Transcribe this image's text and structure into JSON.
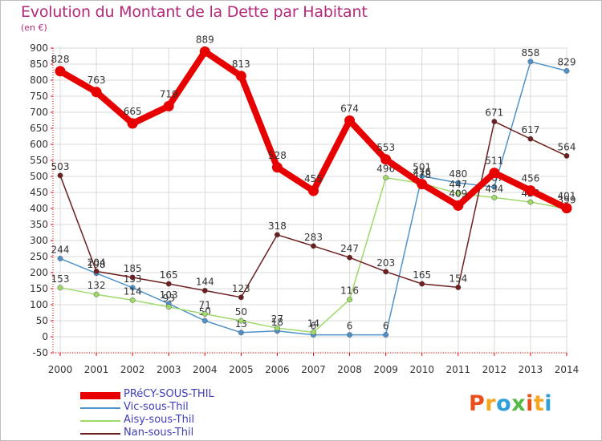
{
  "header": {
    "title": "Evolution du Montant de la Dette par Habitant",
    "unit": "(en €)"
  },
  "brand": {
    "logo_text": "Proxiti",
    "logo_colors": [
      "#e94e1b",
      "#f5a623",
      "#2e9fd8",
      "#56b947",
      "#e94e1b",
      "#f5a623",
      "#2e9fd8"
    ]
  },
  "chart_data": {
    "type": "line",
    "title": "Evolution du Montant de la Dette par Habitant",
    "ylabel": "(en €)",
    "xlabel": "",
    "ylim": [
      -50,
      900
    ],
    "yticks": [
      -50,
      0,
      50,
      100,
      150,
      200,
      250,
      300,
      350,
      400,
      450,
      500,
      550,
      600,
      650,
      700,
      750,
      800,
      850,
      900
    ],
    "grid": true,
    "legend_position": "bottom-left",
    "x": [
      "2000",
      "2001",
      "2002",
      "2003",
      "2004",
      "2005",
      "2006",
      "2007",
      "2008",
      "2009",
      "2010",
      "2011",
      "2012",
      "2013",
      "2014"
    ],
    "series": [
      {
        "name": "PRéCY-SOUS-THIL",
        "color": "#e60000",
        "values": [
          828,
          763,
          665,
          719,
          889,
          813,
          528,
          455,
          674,
          553,
          476,
          409,
          511,
          456,
          401
        ]
      },
      {
        "name": "Vic-sous-Thil",
        "color": "#4f92c9",
        "values": [
          244,
          198,
          153,
          103,
          50,
          13,
          18,
          6,
          6,
          6,
          501,
          480,
          467,
          858,
          829
        ]
      },
      {
        "name": "Aisy-sous-Thil",
        "color": "#9ed96a",
        "values": [
          153,
          132,
          114,
          93,
          71,
          50,
          27,
          14,
          116,
          496,
          478,
          447,
          434,
          420,
          399
        ]
      },
      {
        "name": "Nan-sous-Thil",
        "color": "#6e1e1e",
        "values": [
          503,
          204,
          185,
          165,
          144,
          123,
          318,
          283,
          247,
          203,
          165,
          154,
          671,
          617,
          564
        ]
      }
    ]
  }
}
